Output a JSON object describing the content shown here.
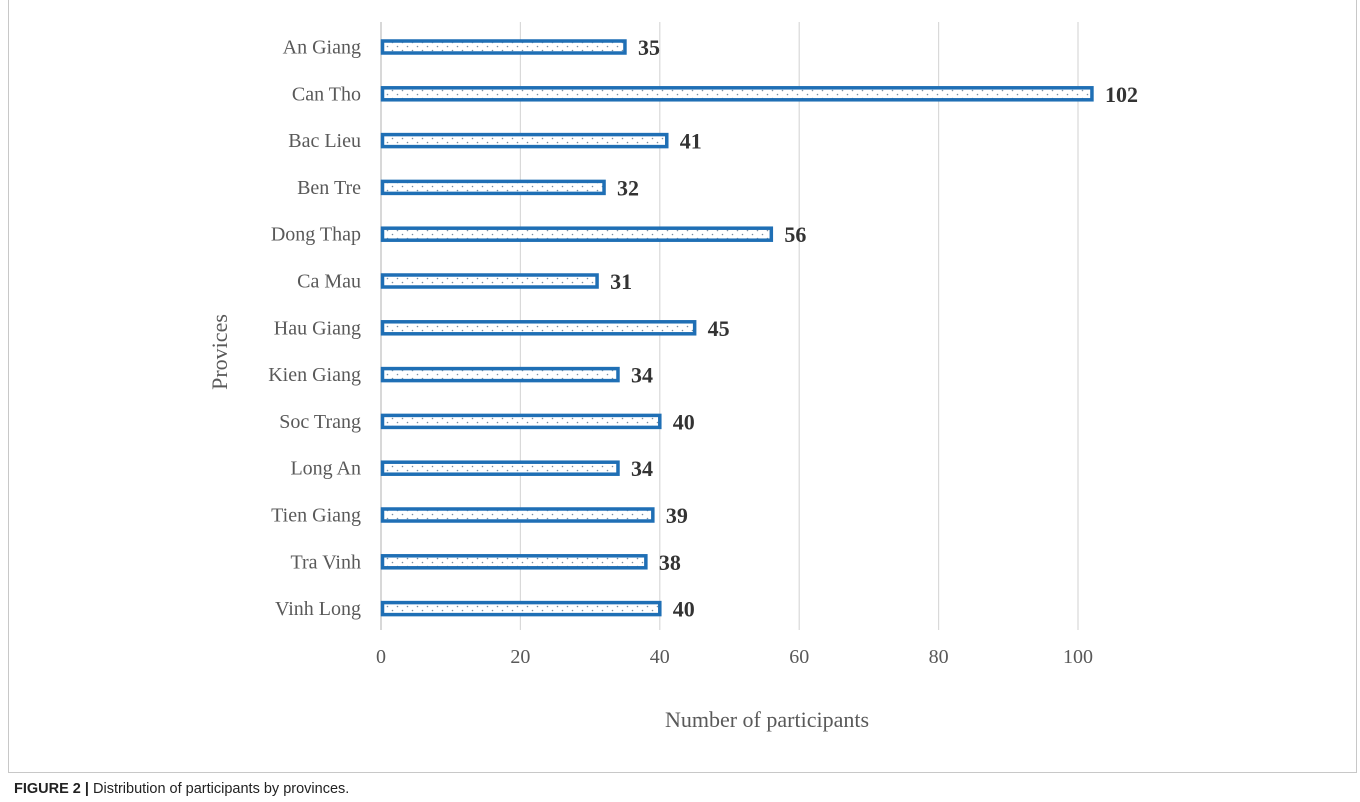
{
  "caption": {
    "figure_label": "FIGURE 2 |",
    "text": "Distribution of participants by provinces."
  },
  "colors": {
    "bar_border": "#1f6fb5",
    "bar_dots": "#7a8fa3",
    "grid": "#d9d9d9",
    "axis_text": "#595959",
    "value_text": "#333333"
  },
  "chart_data": {
    "type": "bar",
    "orientation": "horizontal",
    "xlabel": "Number of participants",
    "ylabel": "Provices",
    "xlim": [
      0,
      100
    ],
    "xticks": [
      0,
      20,
      40,
      60,
      80,
      100
    ],
    "grid": true,
    "categories": [
      "An Giang",
      "Can Tho",
      "Bac Lieu",
      "Ben Tre",
      "Dong Thap",
      "Ca Mau",
      "Hau Giang",
      "Kien Giang",
      "Soc Trang",
      "Long An",
      "Tien Giang",
      "Tra Vinh",
      "Vinh Long"
    ],
    "values": [
      35,
      102,
      41,
      32,
      56,
      31,
      45,
      34,
      40,
      34,
      39,
      38,
      40
    ],
    "data_labels": true
  }
}
